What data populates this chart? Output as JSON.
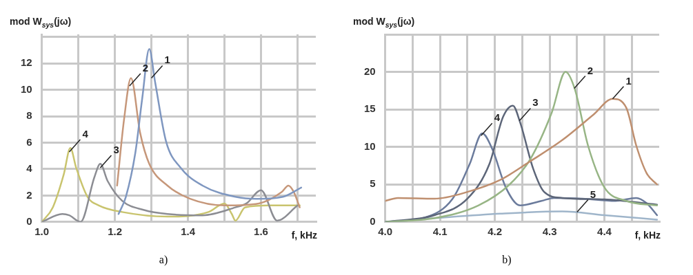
{
  "chart_data": [
    {
      "type": "line",
      "title": "a)",
      "xlabel": "f, kHz",
      "ylabel": "mod W$_{sys}$(jω)",
      "xlim": [
        1.0,
        1.75
      ],
      "ylim": [
        0,
        14.2
      ],
      "xticks": [
        {
          "value": 1.0,
          "label": "1.0"
        },
        {
          "value": 1.1,
          "label": null
        },
        1.2,
        {
          "value": 1.3,
          "label": null
        },
        1.4,
        {
          "value": 1.5,
          "label": null
        },
        1.6,
        {
          "value": 1.7,
          "label": null
        }
      ],
      "yticks": [
        0,
        2,
        4,
        6,
        8,
        10,
        12,
        {
          "value": 14,
          "label": null
        }
      ],
      "grid": true,
      "marker": "none",
      "line_style": "solid",
      "series": [
        {
          "color": "#7f97c0",
          "x": [
            1.21,
            1.23,
            1.256,
            1.275,
            1.294,
            1.31,
            1.34,
            1.38,
            1.44,
            1.53,
            1.59,
            1.66,
            1.71
          ],
          "values": [
            0.6,
            1.9,
            5.25,
            9.4,
            13.1,
            10.6,
            6.1,
            4.1,
            2.75,
            1.9,
            1.75,
            1.9,
            2.6
          ]
        },
        {
          "color": "#c6977a",
          "x": [
            1.206,
            1.225,
            1.244,
            1.269,
            1.294,
            1.344,
            1.406,
            1.5,
            1.594,
            1.656,
            1.675,
            1.69,
            1.706
          ],
          "values": [
            2.75,
            7.75,
            10.9,
            6.75,
            4.4,
            2.75,
            1.75,
            1.25,
            1.4,
            2.25,
            2.75,
            2.25,
            1.1
          ]
        },
        {
          "color": "#8c8d93",
          "x": [
            1.0,
            1.056,
            1.075,
            1.106,
            1.144,
            1.16,
            1.18,
            1.22,
            1.28,
            1.344,
            1.44,
            1.53,
            1.56,
            1.6,
            1.644,
            1.7
          ],
          "values": [
            0,
            0.6,
            0.5,
            0,
            3.4,
            4.4,
            3.1,
            1.6,
            0.9,
            0.6,
            0.5,
            1.1,
            1.4,
            2.4,
            0.1,
            1.25
          ]
        },
        {
          "color": "#c9c46e",
          "x": [
            1.0,
            1.03,
            1.06,
            1.078,
            1.094,
            1.125,
            1.156,
            1.22,
            1.344,
            1.456,
            1.5,
            1.52,
            1.53,
            1.556,
            1.625,
            1.69,
            1.706
          ],
          "values": [
            0,
            1.1,
            3.6,
            5.6,
            4.1,
            1.9,
            1.25,
            0.75,
            0.4,
            0.75,
            1.4,
            0.6,
            0.1,
            1.1,
            1.25,
            1.25,
            1.25
          ]
        }
      ],
      "annotations": [
        {
          "text": "1",
          "x": 1.3,
          "y": 10.9
        },
        {
          "text": "2",
          "x": 1.24,
          "y": 10.3
        },
        {
          "text": "3",
          "x": 1.16,
          "y": 4.1
        },
        {
          "text": "4",
          "x": 1.075,
          "y": 5.3
        }
      ]
    },
    {
      "type": "line",
      "title": "b)",
      "xlabel": "f, kHz",
      "ylabel": "mod W$_{sys}$(jω)",
      "xlim": [
        4.0,
        4.5
      ],
      "ylim": [
        0,
        25
      ],
      "xticks": [
        {
          "value": 4.0,
          "label": "4.0"
        },
        {
          "value": 4.05,
          "label": null
        },
        4.1,
        {
          "value": 4.15,
          "label": null
        },
        4.2,
        {
          "value": 4.25,
          "label": null
        },
        4.3,
        {
          "value": 4.35,
          "label": null
        },
        4.4,
        {
          "value": 4.45,
          "label": null
        }
      ],
      "yticks": [
        0,
        5,
        10,
        15,
        20,
        {
          "value": 25,
          "label": null
        }
      ],
      "grid": true,
      "marker": "none",
      "line_style": "solid",
      "series": [
        {
          "color": "#bf8f6f",
          "x": [
            4.0,
            4.023,
            4.09,
            4.15,
            4.21,
            4.265,
            4.323,
            4.38,
            4.415,
            4.44,
            4.458,
            4.477,
            4.496
          ],
          "values": [
            2.8,
            3.2,
            3.1,
            4.0,
            5.6,
            8.1,
            10.9,
            14.3,
            16.4,
            15.2,
            10.2,
            6.5,
            5.0
          ]
        },
        {
          "color": "#97b585",
          "x": [
            4.0,
            4.09,
            4.17,
            4.227,
            4.265,
            4.304,
            4.329,
            4.346,
            4.37,
            4.4,
            4.44,
            4.496
          ],
          "values": [
            0,
            0.5,
            2.2,
            5.0,
            8.4,
            14.6,
            20.0,
            17.7,
            10.2,
            4.6,
            2.8,
            2.2
          ]
        },
        {
          "color": "#5d6679",
          "x": [
            4.0,
            4.09,
            4.15,
            4.19,
            4.215,
            4.233,
            4.246,
            4.27,
            4.29,
            4.323,
            4.4,
            4.496
          ],
          "values": [
            0,
            0.9,
            3.1,
            7.7,
            14.0,
            15.5,
            13.3,
            7.1,
            4.0,
            3.2,
            3.0,
            2.3
          ]
        },
        {
          "color": "#6b7b9c",
          "x": [
            4.0,
            4.073,
            4.123,
            4.154,
            4.177,
            4.196,
            4.22,
            4.246,
            4.285,
            4.308,
            4.36,
            4.42,
            4.458,
            4.477,
            4.496
          ],
          "values": [
            0,
            0.6,
            3.1,
            7.7,
            11.8,
            9.6,
            4.6,
            2.2,
            2.8,
            3.2,
            3.1,
            2.8,
            3.2,
            2.5,
            0.9
          ]
        },
        {
          "color": "#9fb5ca",
          "x": [
            4.0,
            4.09,
            4.21,
            4.323,
            4.4,
            4.496
          ],
          "values": [
            0,
            0.5,
            1.1,
            1.4,
            0.9,
            0.3
          ]
        }
      ],
      "annotations": [
        {
          "text": "1",
          "x": 4.415,
          "y": 16.4
        },
        {
          "text": "2",
          "x": 4.345,
          "y": 17.8
        },
        {
          "text": "3",
          "x": 4.245,
          "y": 13.5
        },
        {
          "text": "4",
          "x": 4.175,
          "y": 11.5
        },
        {
          "text": "5",
          "x": 4.35,
          "y": 1.3
        }
      ]
    }
  ]
}
